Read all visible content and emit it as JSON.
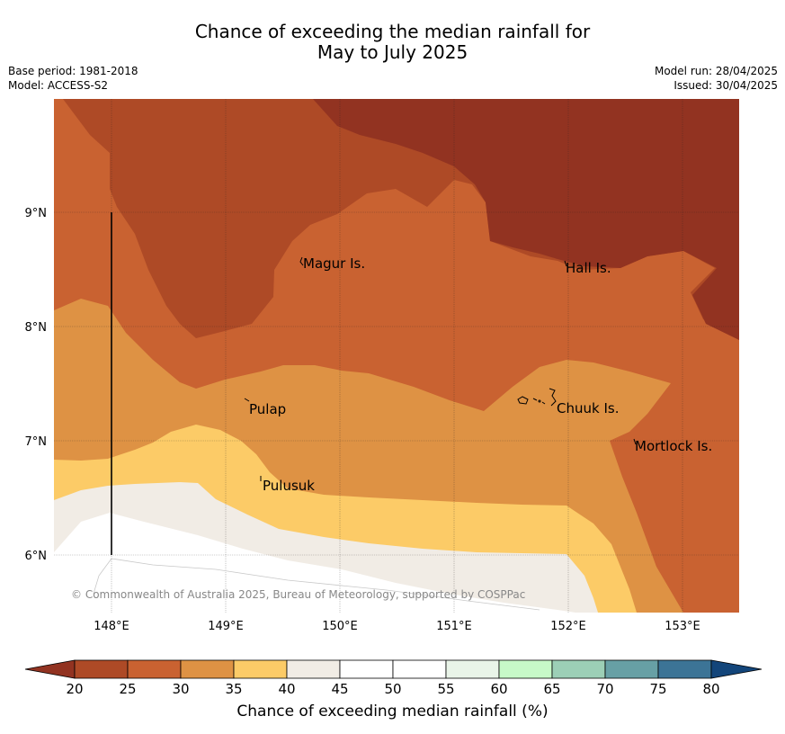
{
  "title": {
    "line1": "Chance of exceeding the median rainfall for",
    "line2": "May to July 2025"
  },
  "meta_left": {
    "base_period": "Base period: 1981-2018",
    "model": "Model: ACCESS-S2"
  },
  "meta_right": {
    "model_run": "Model run: 28/04/2025",
    "issued": "Issued: 30/04/2025"
  },
  "map": {
    "lat_labels": [
      "9°N",
      "8°N",
      "7°N",
      "6°N"
    ],
    "lon_labels": [
      "148°E",
      "149°E",
      "150°E",
      "151°E",
      "152°E",
      "153°E"
    ],
    "places": [
      "Magur Is.",
      "Hall Is.",
      "Pulap",
      "Chuuk Is.",
      "Mortlock Is.",
      "Pulusuk"
    ],
    "copyright": "© Commonwealth of Australia 2025, Bureau of Meteorology, supported by COSPPac"
  },
  "colorbar": {
    "label": "Chance of exceeding median rainfall (%)",
    "ticks": [
      "20",
      "25",
      "30",
      "35",
      "40",
      "45",
      "50",
      "55",
      "60",
      "65",
      "70",
      "75",
      "80"
    ],
    "colors": [
      "#923321",
      "#ae4a26",
      "#c96231",
      "#de9244",
      "#fccb67",
      "#f1ece5",
      "#ffffff",
      "#ffffff",
      "#e9f4e8",
      "#c7f9c8",
      "#9ccfb6",
      "#67a0a5",
      "#3c7496",
      "#13457a"
    ]
  }
}
